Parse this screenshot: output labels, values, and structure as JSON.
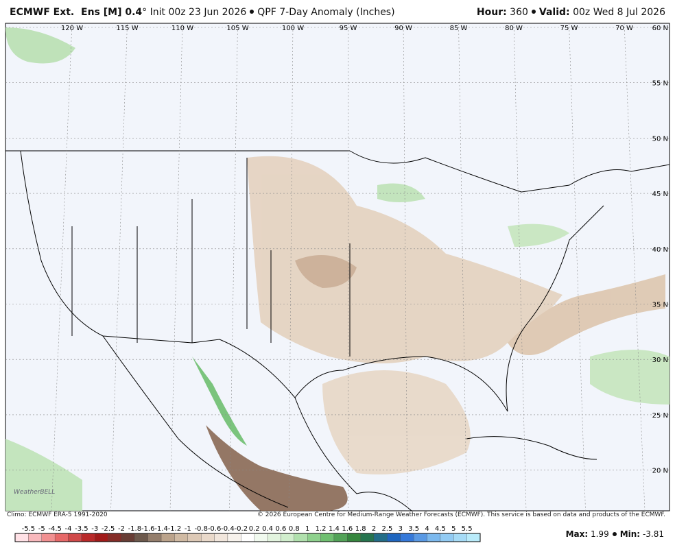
{
  "header": {
    "model": "ECMWF Ext.  Ens [M] 0.4",
    "degree": "°",
    "init": "Init 00z 23 Jun 2026",
    "product": "QPF 7-Day Anomaly (Inches)",
    "hour_label": "Hour:",
    "hour": "360",
    "valid_label": "Valid:",
    "valid": "00z Wed 8 Jul 2026"
  },
  "map": {
    "lon_labels": [
      "120 W",
      "115 W",
      "110 W",
      "105 W",
      "100 W",
      "95 W",
      "90 W",
      "85 W",
      "80 W",
      "75 W",
      "70 W"
    ],
    "lat_labels": [
      "60 N",
      "55 N",
      "50 N",
      "45 N",
      "40 N",
      "35 N",
      "30 N",
      "25 N",
      "20 N"
    ],
    "logo": "WeatherBELL"
  },
  "footer": {
    "climo": "Climo: ECMWF ERA-5 1991-2020",
    "copyright": "© 2026 European Centre for Medium-Range Weather Forecasts (ECMWF). This service is based on data and products of the ECMWF.",
    "max_label": "Max:",
    "max": "1.99",
    "min_label": "Min:",
    "min": "-3.81"
  },
  "colorbar": {
    "labels": [
      "-5.5",
      "-5",
      "-4.5",
      "-4",
      "-3.5",
      "-3",
      "-2.5",
      "-2",
      "-1.8",
      "-1.6",
      "-1.4",
      "-1.2",
      "-1",
      "-0.8",
      "-0.6",
      "-0.4",
      "-0.2",
      "0.2",
      "0.4",
      "0.6",
      "0.8",
      "1",
      "1.2",
      "1.4",
      "1.6",
      "1.8",
      "2",
      "2.5",
      "3",
      "3.5",
      "4",
      "4.5",
      "5",
      "5.5"
    ]
  }
}
